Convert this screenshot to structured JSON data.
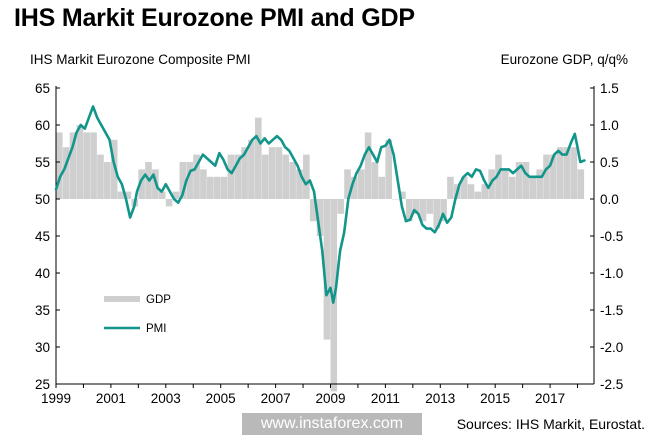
{
  "title": "IHS Markit Eurozone PMI and GDP",
  "watermark": "www.instaforex.com",
  "source": "Sources: IHS Markit, Eurostat.",
  "colors": {
    "pmi": "#12958a",
    "gdp": "#cfcfcf",
    "axis": "#000000"
  },
  "chart_data": {
    "type": "bar",
    "left_axis_title": "IHS Markit Eurozone Composite PMI",
    "right_axis_title": "Eurozone GDP, q/q%",
    "ylim_left": [
      25,
      65
    ],
    "yticks_left": [
      "25",
      "30",
      "35",
      "40",
      "45",
      "50",
      "55",
      "60",
      "65"
    ],
    "ylim_right": [
      -2.5,
      1.5
    ],
    "yticks_right": [
      "-2.5",
      "-2.0",
      "-1.5",
      "-1.0",
      "-0.5",
      "0.0",
      "0.5",
      "1.0",
      "1.5"
    ],
    "xlim": [
      1999,
      2018.6
    ],
    "xticks": [
      "1999",
      "2001",
      "2003",
      "2005",
      "2007",
      "2009",
      "2011",
      "2013",
      "2015",
      "2017"
    ],
    "legend": [
      {
        "name": "GDP",
        "kind": "bar"
      },
      {
        "name": "PMI",
        "kind": "line"
      }
    ],
    "series": [
      {
        "name": "GDP",
        "axis": "right",
        "x": [
          1999.0,
          1999.25,
          1999.5,
          1999.75,
          2000.0,
          2000.25,
          2000.5,
          2000.75,
          2001.0,
          2001.25,
          2001.5,
          2001.75,
          2002.0,
          2002.25,
          2002.5,
          2002.75,
          2003.0,
          2003.25,
          2003.5,
          2003.75,
          2004.0,
          2004.25,
          2004.5,
          2004.75,
          2005.0,
          2005.25,
          2005.5,
          2005.75,
          2006.0,
          2006.25,
          2006.5,
          2006.75,
          2007.0,
          2007.25,
          2007.5,
          2007.75,
          2008.0,
          2008.25,
          2008.5,
          2008.75,
          2009.0,
          2009.25,
          2009.5,
          2009.75,
          2010.0,
          2010.25,
          2010.5,
          2010.75,
          2011.0,
          2011.25,
          2011.5,
          2011.75,
          2012.0,
          2012.25,
          2012.5,
          2012.75,
          2013.0,
          2013.25,
          2013.5,
          2013.75,
          2014.0,
          2014.25,
          2014.5,
          2014.75,
          2015.0,
          2015.25,
          2015.5,
          2015.75,
          2016.0,
          2016.25,
          2016.5,
          2016.75,
          2017.0,
          2017.25,
          2017.5,
          2017.75,
          2018.0
        ],
        "values": [
          0.9,
          0.7,
          0.9,
          1.0,
          0.9,
          0.9,
          0.6,
          0.5,
          0.8,
          0.1,
          0.1,
          -0.1,
          0.4,
          0.5,
          0.4,
          0.1,
          -0.1,
          0.1,
          0.5,
          0.5,
          0.6,
          0.4,
          0.3,
          0.3,
          0.3,
          0.6,
          0.6,
          0.7,
          0.8,
          1.1,
          0.6,
          0.7,
          0.7,
          0.6,
          0.5,
          0.4,
          0.6,
          -0.3,
          -0.5,
          -1.9,
          -2.6,
          -0.2,
          0.4,
          0.3,
          0.4,
          0.9,
          0.5,
          0.3,
          0.8,
          0.0,
          0.1,
          -0.3,
          -0.2,
          -0.3,
          -0.2,
          -0.4,
          -0.3,
          0.3,
          0.2,
          0.3,
          0.2,
          0.1,
          0.2,
          0.4,
          0.6,
          0.4,
          0.3,
          0.5,
          0.5,
          0.3,
          0.4,
          0.6,
          0.6,
          0.7,
          0.7,
          0.7,
          0.4
        ]
      },
      {
        "name": "PMI",
        "axis": "left",
        "x": [
          1999.0,
          1999.15,
          1999.3,
          1999.45,
          1999.6,
          1999.75,
          1999.9,
          2000.05,
          2000.2,
          2000.35,
          2000.5,
          2000.65,
          2000.8,
          2000.95,
          2001.1,
          2001.25,
          2001.4,
          2001.55,
          2001.7,
          2001.85,
          2001.95,
          2002.1,
          2002.25,
          2002.4,
          2002.55,
          2002.7,
          2002.85,
          2003.0,
          2003.15,
          2003.3,
          2003.45,
          2003.6,
          2003.75,
          2003.9,
          2004.05,
          2004.2,
          2004.35,
          2004.5,
          2004.65,
          2004.8,
          2004.95,
          2005.1,
          2005.25,
          2005.4,
          2005.55,
          2005.7,
          2005.85,
          2006.0,
          2006.15,
          2006.3,
          2006.45,
          2006.6,
          2006.75,
          2006.9,
          2007.05,
          2007.2,
          2007.35,
          2007.5,
          2007.65,
          2007.8,
          2007.95,
          2008.1,
          2008.25,
          2008.4,
          2008.55,
          2008.7,
          2008.85,
          2009.0,
          2009.1,
          2009.2,
          2009.35,
          2009.5,
          2009.65,
          2009.8,
          2009.95,
          2010.1,
          2010.25,
          2010.4,
          2010.55,
          2010.7,
          2010.85,
          2011.0,
          2011.15,
          2011.3,
          2011.45,
          2011.6,
          2011.75,
          2011.9,
          2012.05,
          2012.2,
          2012.35,
          2012.5,
          2012.65,
          2012.8,
          2012.95,
          2013.1,
          2013.25,
          2013.4,
          2013.55,
          2013.7,
          2013.85,
          2014.0,
          2014.15,
          2014.3,
          2014.45,
          2014.6,
          2014.75,
          2014.9,
          2015.05,
          2015.2,
          2015.35,
          2015.5,
          2015.65,
          2015.8,
          2015.95,
          2016.1,
          2016.25,
          2016.4,
          2016.55,
          2016.7,
          2016.85,
          2017.0,
          2017.15,
          2017.3,
          2017.45,
          2017.6,
          2017.75,
          2017.9,
          2018.0,
          2018.1,
          2018.25
        ],
        "values": [
          51.3,
          53.0,
          54.0,
          55.5,
          57.0,
          59.0,
          60.0,
          59.5,
          61.0,
          62.5,
          61.0,
          60.0,
          59.0,
          58.0,
          55.0,
          53.0,
          52.0,
          50.0,
          47.5,
          49.0,
          51.0,
          52.5,
          53.3,
          52.5,
          53.3,
          51.5,
          51.0,
          52.0,
          51.0,
          50.0,
          49.5,
          50.5,
          52.5,
          53.8,
          54.0,
          55.0,
          56.0,
          55.5,
          55.0,
          54.5,
          56.2,
          55.3,
          54.0,
          53.5,
          54.5,
          55.5,
          56.0,
          57.0,
          58.0,
          58.5,
          57.5,
          58.2,
          57.5,
          58.0,
          58.5,
          58.0,
          57.0,
          56.5,
          55.5,
          54.5,
          53.0,
          52.0,
          52.5,
          51.0,
          47.0,
          43.0,
          37.0,
          38.0,
          36.0,
          38.0,
          43.0,
          45.5,
          50.0,
          52.0,
          53.5,
          54.5,
          56.0,
          57.0,
          56.0,
          55.0,
          57.0,
          57.2,
          58.0,
          56.0,
          52.5,
          49.0,
          47.0,
          47.2,
          48.5,
          48.0,
          46.5,
          46.0,
          46.0,
          45.5,
          46.5,
          48.0,
          46.8,
          47.5,
          50.0,
          52.0,
          53.0,
          53.5,
          53.0,
          54.0,
          53.8,
          52.5,
          51.5,
          52.5,
          53.0,
          54.0,
          54.0,
          54.0,
          53.5,
          54.0,
          54.5,
          53.5,
          53.0,
          53.0,
          53.0,
          53.0,
          54.0,
          54.5,
          56.0,
          56.5,
          56.0,
          56.0,
          57.5,
          58.8,
          57.0,
          55.0,
          55.2
        ]
      }
    ]
  }
}
